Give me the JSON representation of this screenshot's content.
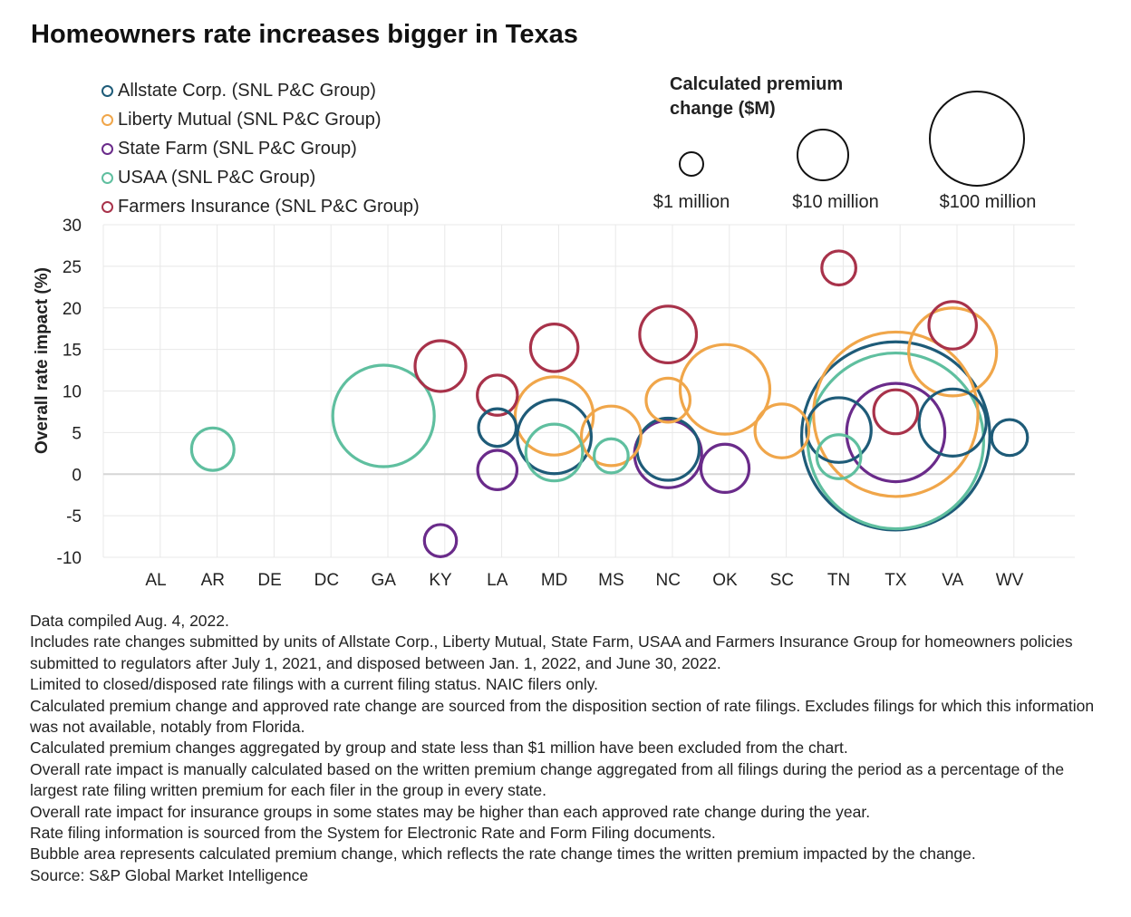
{
  "chart_data": {
    "type": "scatter",
    "title": "Homeowners rate increases bigger in Texas",
    "ylabel": "Overall rate impact (%)",
    "xlabel": "",
    "categories": [
      "AL",
      "AR",
      "DE",
      "DC",
      "GA",
      "KY",
      "LA",
      "MD",
      "MS",
      "NC",
      "OK",
      "SC",
      "TN",
      "TX",
      "VA",
      "WV"
    ],
    "ylim": [
      -10,
      30
    ],
    "yticks": [
      30,
      25,
      20,
      15,
      10,
      5,
      0,
      -5,
      -10
    ],
    "ytick_labels": [
      "30",
      "25",
      "20",
      "15",
      "10",
      "5",
      "0",
      "-5",
      "-10"
    ],
    "grid": true,
    "legend_position": "top-left",
    "size_legend": {
      "title_line1": "Calculated premium",
      "title_line2": "change ($M)",
      "items": [
        {
          "label": "$1 million",
          "value": 1
        },
        {
          "label": "$10 million",
          "value": 10
        },
        {
          "label": "$100 million",
          "value": 100
        }
      ]
    },
    "series": [
      {
        "name": "Allstate Corp. (SNL P&C Group)",
        "color": "#1e5b78",
        "points": [
          {
            "x": "LA",
            "y": 5.6,
            "size": 2.2
          },
          {
            "x": "MD",
            "y": 4.5,
            "size": 8.5
          },
          {
            "x": "NC",
            "y": 3.0,
            "size": 6.0
          },
          {
            "x": "TN",
            "y": 5.3,
            "size": 6.5
          },
          {
            "x": "TX",
            "y": 4.6,
            "size": 55
          },
          {
            "x": "VA",
            "y": 6.2,
            "size": 7.0
          },
          {
            "x": "WV",
            "y": 4.4,
            "size": 2.0
          }
        ]
      },
      {
        "name": "Liberty Mutual (SNL P&C Group)",
        "color": "#f0a64a",
        "points": [
          {
            "x": "MD",
            "y": 7.0,
            "size": 9.5
          },
          {
            "x": "MS",
            "y": 4.6,
            "size": 5.5
          },
          {
            "x": "NC",
            "y": 8.9,
            "size": 3.0
          },
          {
            "x": "OK",
            "y": 10.2,
            "size": 12.5
          },
          {
            "x": "SC",
            "y": 5.2,
            "size": 4.5
          },
          {
            "x": "TX",
            "y": 7.2,
            "size": 42
          },
          {
            "x": "VA",
            "y": 14.7,
            "size": 12.0
          }
        ]
      },
      {
        "name": "State Farm (SNL P&C Group)",
        "color": "#6a2b8a",
        "points": [
          {
            "x": "KY",
            "y": -8.0,
            "size": 1.6
          },
          {
            "x": "LA",
            "y": 0.5,
            "size": 2.4
          },
          {
            "x": "NC",
            "y": 2.4,
            "size": 7.0
          },
          {
            "x": "OK",
            "y": 0.7,
            "size": 3.6
          },
          {
            "x": "TX",
            "y": 5.0,
            "size": 15.0
          }
        ]
      },
      {
        "name": "USAA (SNL P&C Group)",
        "color": "#5fbf9f",
        "points": [
          {
            "x": "AR",
            "y": 3.0,
            "size": 2.8
          },
          {
            "x": "GA",
            "y": 7.0,
            "size": 16.0
          },
          {
            "x": "MD",
            "y": 2.6,
            "size": 5.0
          },
          {
            "x": "MS",
            "y": 2.2,
            "size": 1.8
          },
          {
            "x": "TN",
            "y": 2.1,
            "size": 3.0
          },
          {
            "x": "TX",
            "y": 4.0,
            "size": 48
          }
        ]
      },
      {
        "name": "Farmers Insurance (SNL P&C Group)",
        "color": "#a8324a",
        "points": [
          {
            "x": "KY",
            "y": 13.0,
            "size": 4.0
          },
          {
            "x": "LA",
            "y": 9.5,
            "size": 2.5
          },
          {
            "x": "MD",
            "y": 15.2,
            "size": 3.5
          },
          {
            "x": "NC",
            "y": 16.8,
            "size": 5.0
          },
          {
            "x": "TN",
            "y": 24.8,
            "size": 1.8
          },
          {
            "x": "TX",
            "y": 7.5,
            "size": 3.0
          },
          {
            "x": "VA",
            "y": 17.9,
            "size": 3.5
          }
        ]
      }
    ]
  },
  "notes": [
    "Data compiled Aug. 4, 2022.",
    "Includes rate changes submitted by units of Allstate Corp., Liberty Mutual, State Farm, USAA and Farmers Insurance Group for homeowners policies submitted to regulators after July 1, 2021, and disposed between Jan. 1, 2022, and June 30, 2022.",
    "Limited to closed/disposed rate filings with a current filing status. NAIC filers only.",
    "Calculated premium change and approved rate change are sourced from the disposition section of rate filings. Excludes filings for which this information was not available, notably from Florida.",
    "Calculated premium changes aggregated by group and state less than $1 million have been excluded from the chart.",
    "Overall rate impact is manually calculated based on the written premium change aggregated from all filings during the period as a percentage of the largest rate filing written premium for each filer in the group in every state.",
    "Overall rate impact for insurance groups in some states may be higher than each approved rate change during the year.",
    "Rate filing information is sourced from the System for Electronic Rate and Form Filing documents.",
    "Bubble area represents calculated premium change, which reflects the rate change times the written premium impacted by the change.",
    "Source: S&P Global Market Intelligence"
  ]
}
